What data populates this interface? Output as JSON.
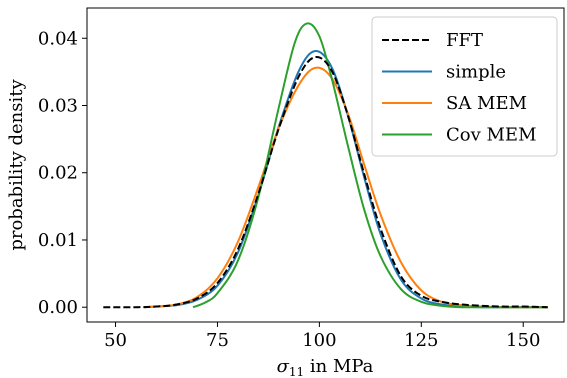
{
  "chart_data": {
    "type": "line",
    "xlabel": "σ11 in MPa",
    "xlabel_main": "σ",
    "xlabel_sub": "11",
    "xlabel_rest": " in MPa",
    "ylabel": "probability density",
    "xlim": [
      43,
      160
    ],
    "ylim": [
      -0.0022,
      0.0445
    ],
    "xticks": [
      50,
      75,
      100,
      125,
      150
    ],
    "xtick_labels": [
      "50",
      "75",
      "100",
      "125",
      "150"
    ],
    "yticks": [
      0.0,
      0.01,
      0.02,
      0.03,
      0.04
    ],
    "ytick_labels": [
      "0.00",
      "0.01",
      "0.02",
      "0.03",
      "0.04"
    ],
    "grid": false,
    "legend_position": "top-right",
    "series": [
      {
        "name": "FFT",
        "color": "#000000",
        "dashed": true,
        "x": [
          47,
          55,
          60,
          65,
          70,
          75,
          80,
          85,
          90,
          95,
          99,
          103,
          107,
          111,
          115,
          120,
          125,
          130,
          135,
          140,
          145,
          150,
          156
        ],
        "y": [
          0.0,
          0.0,
          0.0001,
          0.0004,
          0.0013,
          0.0036,
          0.0086,
          0.0168,
          0.0265,
          0.0344,
          0.0372,
          0.0352,
          0.0285,
          0.0198,
          0.0117,
          0.0046,
          0.0017,
          0.0008,
          0.0004,
          0.0002,
          0.0001,
          0.0001,
          0.0
        ]
      },
      {
        "name": "simple",
        "color": "#1f77b4",
        "dashed": false,
        "x": [
          57,
          60,
          65,
          70,
          75,
          80,
          85,
          90,
          95,
          99,
          103,
          107,
          111,
          115,
          120,
          125,
          130,
          135,
          140,
          145,
          150,
          156
        ],
        "y": [
          0.0,
          0.0001,
          0.0003,
          0.0011,
          0.0032,
          0.0081,
          0.0166,
          0.0268,
          0.0352,
          0.0381,
          0.0357,
          0.0285,
          0.0193,
          0.0109,
          0.0041,
          0.0013,
          0.0004,
          0.0001,
          0.0,
          0.0,
          0.0,
          0.0
        ]
      },
      {
        "name": "SA MEM",
        "color": "#ff7f0e",
        "dashed": false,
        "x": [
          57,
          60,
          65,
          70,
          75,
          80,
          85,
          90,
          95,
          99,
          103,
          107,
          111,
          115,
          120,
          125,
          130,
          135,
          140,
          145,
          150,
          156
        ],
        "y": [
          0.0,
          0.0001,
          0.0004,
          0.0015,
          0.0043,
          0.0097,
          0.0178,
          0.0266,
          0.0331,
          0.0356,
          0.0341,
          0.0288,
          0.0212,
          0.0138,
          0.0067,
          0.0025,
          0.0008,
          0.0003,
          0.0001,
          0.0,
          0.0,
          0.0
        ]
      },
      {
        "name": "Cov MEM",
        "color": "#2ca02c",
        "dashed": false,
        "x": [
          69,
          72,
          75,
          80,
          85,
          90,
          94,
          97,
          100,
          103,
          107,
          111,
          115,
          120,
          125,
          130,
          135,
          140,
          145,
          150,
          156
        ],
        "y": [
          0.0,
          0.0007,
          0.0021,
          0.0069,
          0.0163,
          0.0296,
          0.0394,
          0.0422,
          0.0403,
          0.0341,
          0.024,
          0.0145,
          0.0076,
          0.0027,
          0.0008,
          0.0002,
          0.0,
          0.0,
          0.0,
          0.0,
          0.0
        ]
      }
    ]
  }
}
